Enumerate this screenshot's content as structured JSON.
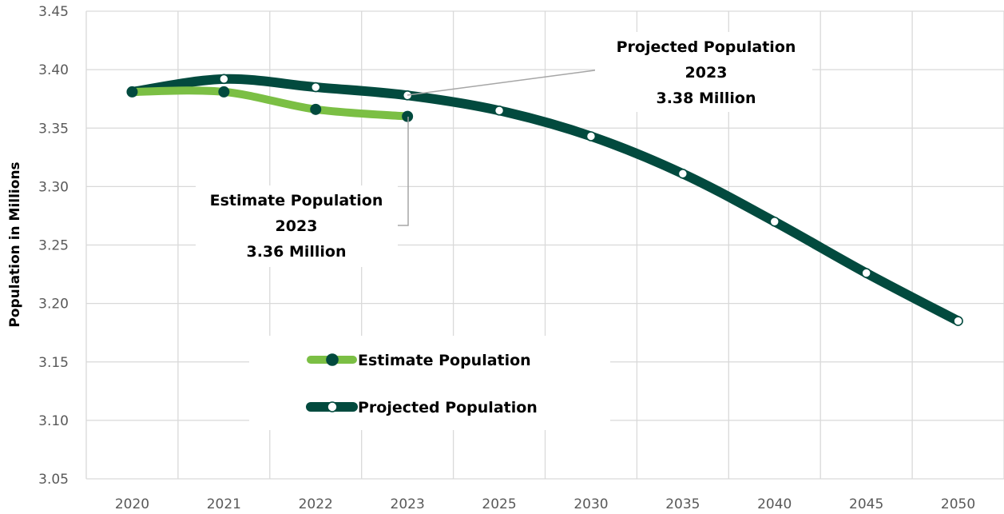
{
  "chart_data": {
    "type": "line",
    "categories": [
      "2020",
      "2021",
      "2022",
      "2023",
      "2025",
      "2030",
      "2035",
      "2040",
      "2045",
      "2050"
    ],
    "ylabel": "Population in Millions",
    "xlabel": "",
    "ylim": [
      3.05,
      3.45
    ],
    "yticks": [
      "3.05",
      "3.10",
      "3.15",
      "3.20",
      "3.25",
      "3.30",
      "3.35",
      "3.40",
      "3.45"
    ],
    "grid": true,
    "legend_position": "bottom-center",
    "series": [
      {
        "name": "Estimate Population",
        "values": [
          3.381,
          3.381,
          3.366,
          3.36,
          null,
          null,
          null,
          null,
          null,
          null
        ],
        "line_color": "#7bbf44",
        "marker_fill": "#024a3e"
      },
      {
        "name": "Projected Population",
        "values": [
          3.381,
          3.392,
          3.385,
          3.378,
          3.365,
          3.343,
          3.311,
          3.27,
          3.226,
          3.185
        ],
        "line_color": "#024a3e",
        "marker_fill": "#ffffff"
      }
    ],
    "annotations": [
      {
        "series": 1,
        "point": 3,
        "lines": [
          "Projected Population",
          "2023",
          "3.38 Million"
        ]
      },
      {
        "series": 0,
        "point": 3,
        "lines": [
          "Estimate Population",
          "2023",
          "3.36 Million"
        ]
      }
    ]
  }
}
